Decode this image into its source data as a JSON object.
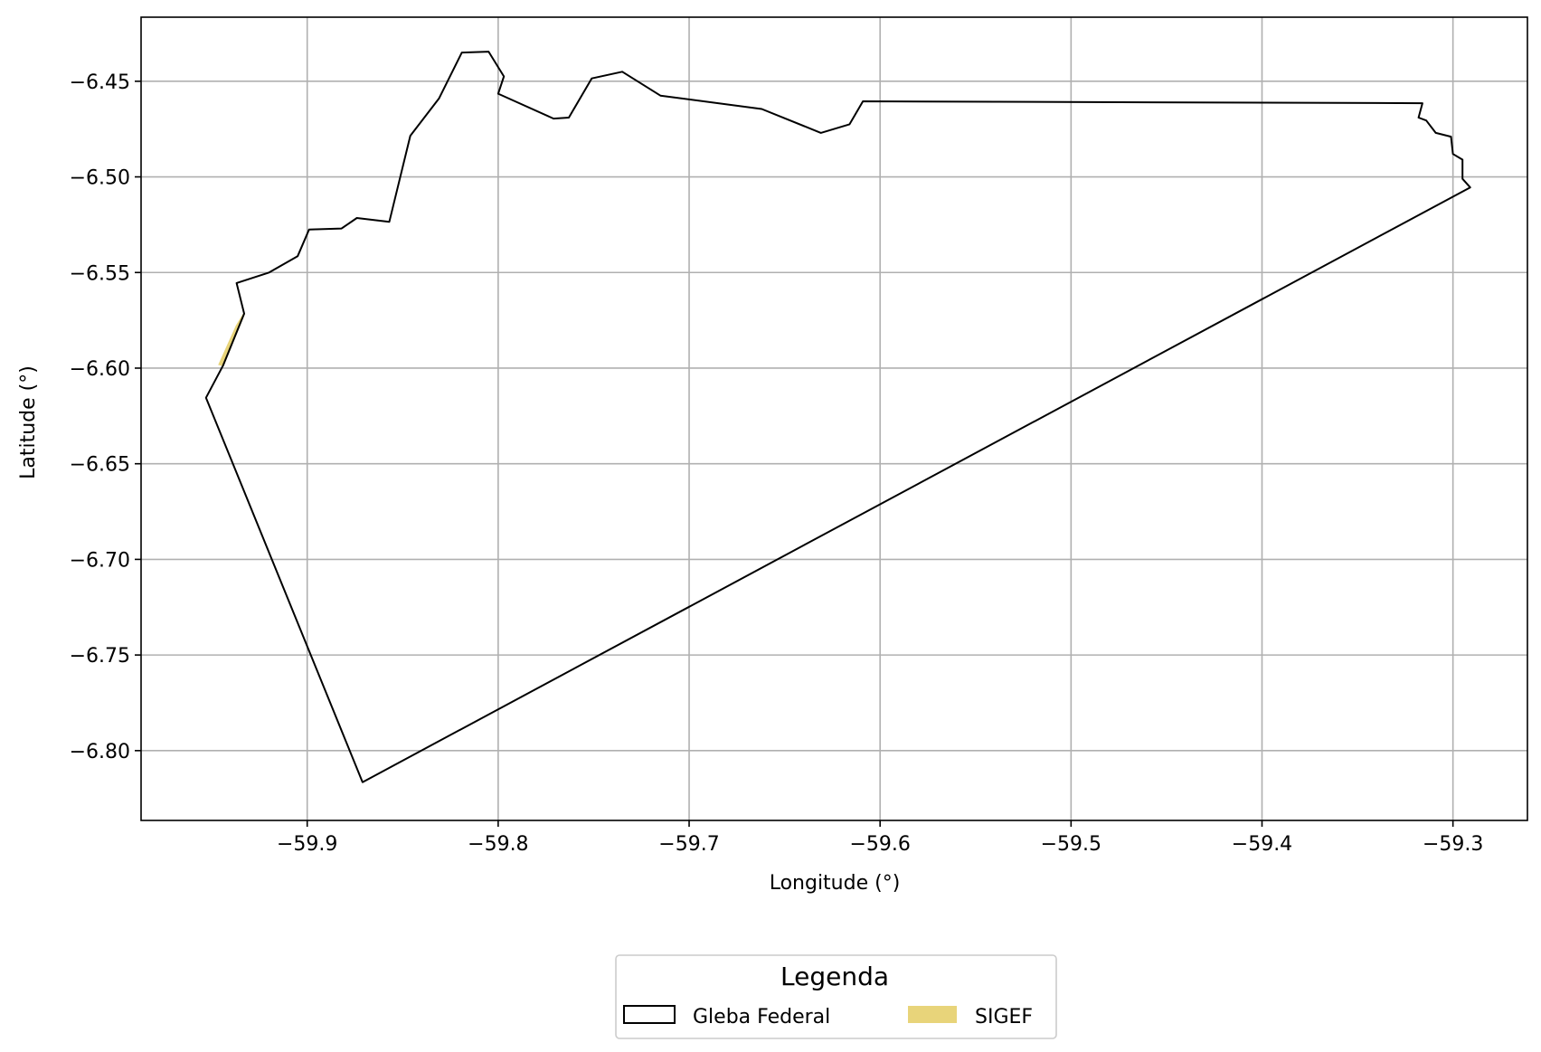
{
  "chart_data": {
    "type": "map",
    "xlabel": "Longitude (°)",
    "ylabel": "Latitude (°)",
    "xlim": [
      -59.987,
      -59.261
    ],
    "ylim": [
      -6.8365,
      -6.4165
    ],
    "xticks": [
      -59.9,
      -59.8,
      -59.7,
      -59.6,
      -59.5,
      -59.4,
      -59.3
    ],
    "xtick_labels": [
      "−59.9",
      "−59.8",
      "−59.7",
      "−59.6",
      "−59.5",
      "−59.4",
      "−59.3"
    ],
    "yticks": [
      -6.45,
      -6.5,
      -6.55,
      -6.6,
      -6.65,
      -6.7,
      -6.75,
      -6.8
    ],
    "ytick_labels": [
      "−6.45",
      "−6.50",
      "−6.55",
      "−6.60",
      "−6.65",
      "−6.70",
      "−6.75",
      "−6.80"
    ],
    "grid": true,
    "legend": {
      "title": "Legenda",
      "placement": "below plot, centered",
      "entries": [
        {
          "label": "Gleba Federal",
          "style": "outline",
          "color": "#000000"
        },
        {
          "label": "SIGEF",
          "style": "filled",
          "color": "#e8d47a"
        }
      ]
    },
    "layers": [
      {
        "name": "Gleba Federal",
        "kind": "polygon-outline",
        "color": "#000000",
        "coordinates": [
          [
            -59.871,
            -6.8165
          ],
          [
            -59.953,
            -6.6155
          ],
          [
            -59.944,
            -6.5985
          ],
          [
            -59.933,
            -6.5715
          ],
          [
            -59.937,
            -6.5555
          ],
          [
            -59.92,
            -6.55
          ],
          [
            -59.905,
            -6.5415
          ],
          [
            -59.899,
            -6.5275
          ],
          [
            -59.882,
            -6.527
          ],
          [
            -59.874,
            -6.5215
          ],
          [
            -59.857,
            -6.5235
          ],
          [
            -59.846,
            -6.4785
          ],
          [
            -59.831,
            -6.459
          ],
          [
            -59.819,
            -6.435
          ],
          [
            -59.805,
            -6.4345
          ],
          [
            -59.797,
            -6.4475
          ],
          [
            -59.8,
            -6.4565
          ],
          [
            -59.771,
            -6.4695
          ],
          [
            -59.763,
            -6.469
          ],
          [
            -59.751,
            -6.4485
          ],
          [
            -59.735,
            -6.445
          ],
          [
            -59.715,
            -6.4575
          ],
          [
            -59.662,
            -6.4645
          ],
          [
            -59.631,
            -6.477
          ],
          [
            -59.616,
            -6.4725
          ],
          [
            -59.609,
            -6.4605
          ],
          [
            -59.316,
            -6.4615
          ],
          [
            -59.318,
            -6.469
          ],
          [
            -59.314,
            -6.4705
          ],
          [
            -59.309,
            -6.477
          ],
          [
            -59.301,
            -6.479
          ],
          [
            -59.3,
            -6.488
          ],
          [
            -59.295,
            -6.491
          ],
          [
            -59.295,
            -6.501
          ],
          [
            -59.291,
            -6.5055
          ],
          [
            -59.871,
            -6.8165
          ]
        ]
      },
      {
        "name": "SIGEF",
        "kind": "polygon-filled",
        "color": "#e8d47a",
        "coordinates": [
          [
            -59.944,
            -6.5985
          ],
          [
            -59.933,
            -6.5715
          ],
          [
            -59.937,
            -6.578
          ],
          [
            -59.946,
            -6.598
          ]
        ]
      }
    ]
  }
}
